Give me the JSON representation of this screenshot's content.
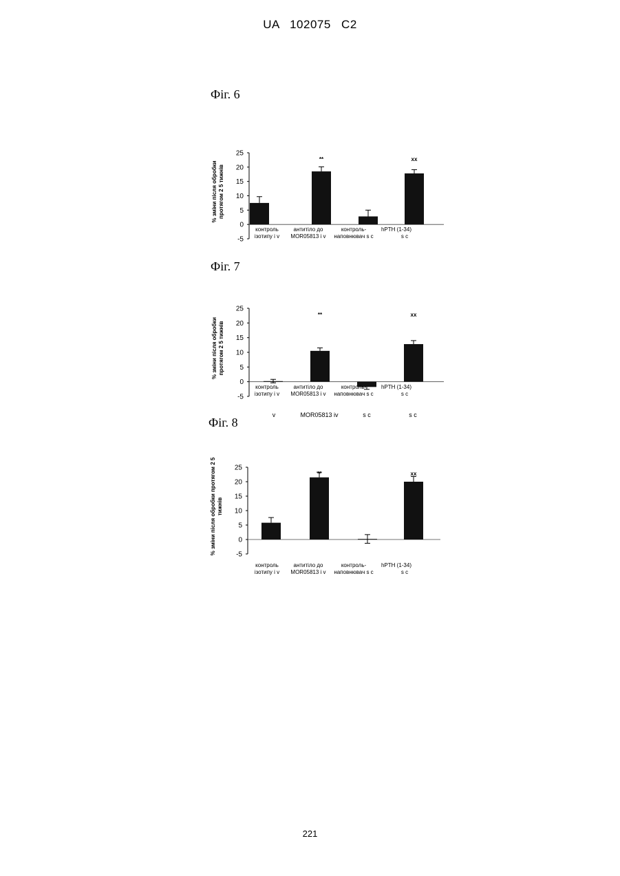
{
  "header": {
    "text": "UA   102075   C2"
  },
  "page_number": "221",
  "figures": [
    {
      "label": "Фіг. 6"
    },
    {
      "label": "Фіг. 7"
    },
    {
      "label": "Фіг. 8"
    }
  ],
  "stray_labels": [
    "v",
    "MOR05813 iv",
    "s c",
    "s c"
  ],
  "chart_data": [
    {
      "type": "bar",
      "title": "",
      "ylabel": "% зміни після обробки протягом 2 5 тижнів",
      "xlabel": "",
      "ylim": [
        -5,
        25
      ],
      "yticks": [
        -5,
        0,
        5,
        10,
        15,
        20,
        25
      ],
      "categories": [
        [
          "контроль",
          "ізотипу i v"
        ],
        [
          "антитіло до",
          "MOR05813 i v"
        ],
        [
          "контроль-",
          "наповнювач s c"
        ],
        [
          "hPTH (1-34)",
          "s c"
        ]
      ],
      "values": [
        7.5,
        18.5,
        2.8,
        17.8
      ],
      "errors": [
        2.2,
        1.6,
        2.2,
        1.3
      ],
      "annotations": [
        "",
        "**",
        "",
        "xx"
      ],
      "colors": {
        "bar": "#111111",
        "axis": "#000000"
      }
    },
    {
      "type": "bar",
      "title": "",
      "ylabel": "% зміни після обробки протягом 2 5 тижнів",
      "xlabel": "",
      "ylim": [
        -5,
        25
      ],
      "yticks": [
        -5,
        0,
        5,
        10,
        15,
        20,
        25
      ],
      "categories": [
        [
          "контроль",
          "ізотипу i v"
        ],
        [
          "антитіло до",
          "MOR05813 i v"
        ],
        [
          "контроль-",
          "наповнювач s c"
        ],
        [
          "hPTH (1-34)",
          "s c"
        ]
      ],
      "values": [
        0.2,
        10.5,
        -1.8,
        12.8
      ],
      "errors": [
        0.6,
        1.0,
        0.8,
        1.2
      ],
      "annotations": [
        "",
        "**",
        "",
        "xx"
      ],
      "colors": {
        "bar": "#111111",
        "axis": "#000000"
      }
    },
    {
      "type": "bar",
      "title": "",
      "ylabel": "% зміни після обробки протягом 2 5 тижнів",
      "xlabel": "",
      "ylim": [
        -5,
        25
      ],
      "yticks": [
        -5,
        0,
        5,
        10,
        15,
        20,
        25
      ],
      "categories": [
        [
          "контроль",
          "ізотипу i v"
        ],
        [
          "антитіло до",
          "MOR05813 i v"
        ],
        [
          "контроль-",
          "наповнювач s c"
        ],
        [
          "hPTH (1-34)",
          "s c"
        ]
      ],
      "values": [
        5.8,
        21.5,
        0.2,
        20.0
      ],
      "errors": [
        1.8,
        1.8,
        1.5,
        1.8
      ],
      "annotations": [
        "",
        "**",
        "",
        "xx"
      ],
      "colors": {
        "bar": "#111111",
        "axis": "#000000"
      }
    }
  ]
}
